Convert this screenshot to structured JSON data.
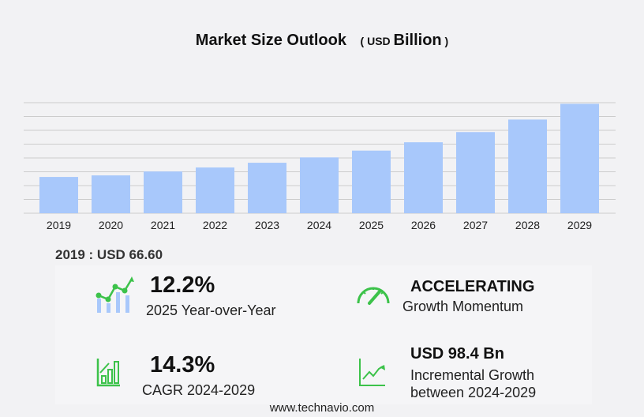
{
  "title": "Market Size Outlook",
  "unit_prefix": "USD",
  "unit_word": "Billion",
  "first_value_label": "2019 : USD  66.60",
  "stats": {
    "yoy": {
      "value": "12.2%",
      "label": "2025 Year-over-Year",
      "icon": "growth-chart-icon"
    },
    "momentum": {
      "value": "ACCELERATING",
      "label": "Growth Momentum",
      "icon": "speedometer-icon"
    },
    "cagr": {
      "value": "14.3%",
      "label": "CAGR 2024-2029",
      "icon": "bar-chart-icon"
    },
    "incremental": {
      "value": "USD 98.4 Bn",
      "label1": "Incremental Growth",
      "label2": "between 2024-2029",
      "icon": "trend-line-icon"
    }
  },
  "footer": "www.technavio.com",
  "colors": {
    "bar": "#a8c8fb",
    "accent": "#3cc24a",
    "grid": "#cccccc"
  },
  "chart_data": {
    "type": "bar",
    "title": "Market Size Outlook (USD Billion)",
    "categories": [
      "2019",
      "2020",
      "2021",
      "2022",
      "2023",
      "2024",
      "2025",
      "2026",
      "2027",
      "2028",
      "2029"
    ],
    "values": [
      66.6,
      69.5,
      76.7,
      84.0,
      92.7,
      102.5,
      115.0,
      130.3,
      149.0,
      172.0,
      200.9
    ],
    "ylim": [
      0,
      203
    ],
    "grid": true,
    "xlabel": "",
    "ylabel": ""
  }
}
